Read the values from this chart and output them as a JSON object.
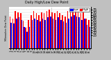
{
  "title": "Milwaukee Weather Dew Point",
  "subtitle": "Daily High/Low",
  "ylim": [
    0,
    80
  ],
  "background_color": "#c0c0c0",
  "plot_bg": "#ffffff",
  "high_color": "#ff0000",
  "low_color": "#0000ff",
  "dashed_line_x": 15.5,
  "days": [
    "1",
    "2",
    "3",
    "4",
    "5",
    "6",
    "7",
    "8",
    "9",
    "10",
    "11",
    "12",
    "13",
    "14",
    "15",
    "16",
    "17",
    "18",
    "19",
    "20",
    "21",
    "22",
    "23",
    "24",
    "25",
    "26",
    "27",
    "28",
    "29",
    "30",
    "31"
  ],
  "highs": [
    62,
    58,
    72,
    70,
    68,
    54,
    40,
    55,
    65,
    72,
    68,
    65,
    70,
    68,
    72,
    75,
    70,
    68,
    72,
    68,
    65,
    62,
    72,
    75,
    76,
    74,
    72,
    68,
    70,
    58,
    55
  ],
  "lows": [
    50,
    48,
    58,
    60,
    55,
    42,
    32,
    42,
    55,
    58,
    55,
    52,
    58,
    55,
    60,
    62,
    58,
    55,
    60,
    55,
    52,
    50,
    58,
    62,
    65,
    62,
    60,
    55,
    58,
    45,
    42
  ],
  "yticks": [
    25,
    30,
    35,
    40,
    45,
    50,
    55,
    60,
    65,
    70,
    75
  ],
  "ytick_fontsize": 3.5,
  "xtick_fontsize": 2.8,
  "legend_fontsize": 3.0
}
